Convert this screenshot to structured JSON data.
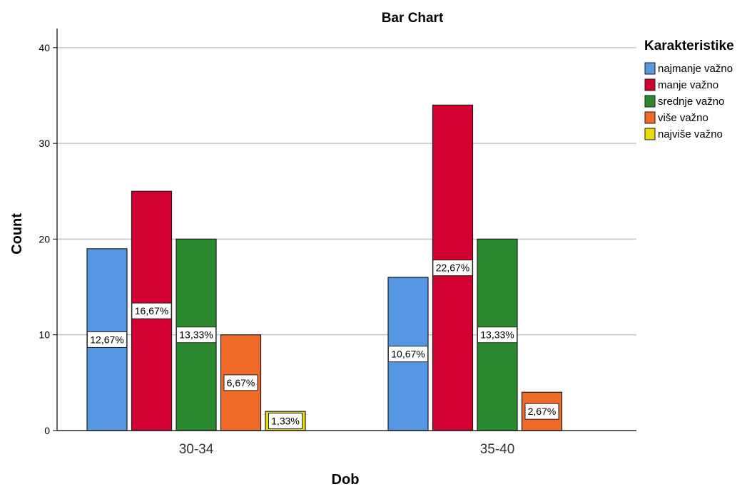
{
  "chart_data": {
    "type": "bar",
    "title": "Bar Chart",
    "xlabel": "Dob",
    "ylabel": "Count",
    "ylim": [
      0,
      42
    ],
    "yticks": [
      0,
      10,
      20,
      30,
      40
    ],
    "grid": true,
    "categories": [
      "30-34",
      "35-40"
    ],
    "legend": {
      "title": "Karakteristike",
      "placement": "right"
    },
    "series": [
      {
        "name": "najmanje važno",
        "color": "#5597e3",
        "values": [
          19,
          16
        ],
        "labels": [
          "12,67%",
          "10,67%"
        ]
      },
      {
        "name": "manje važno",
        "color": "#d20030",
        "values": [
          25,
          34
        ],
        "labels": [
          "16,67%",
          "22,67%"
        ]
      },
      {
        "name": "srednje važno",
        "color": "#2a8a2d",
        "values": [
          20,
          20
        ],
        "labels": [
          "13,33%",
          "13,33%"
        ]
      },
      {
        "name": "više važno",
        "color": "#f06a28",
        "values": [
          10,
          4
        ],
        "labels": [
          "6,67%",
          "2,67%"
        ]
      },
      {
        "name": "najviše važno",
        "color": "#e8dc10",
        "values": [
          2,
          0
        ],
        "labels": [
          "1,33%",
          ""
        ]
      }
    ]
  }
}
